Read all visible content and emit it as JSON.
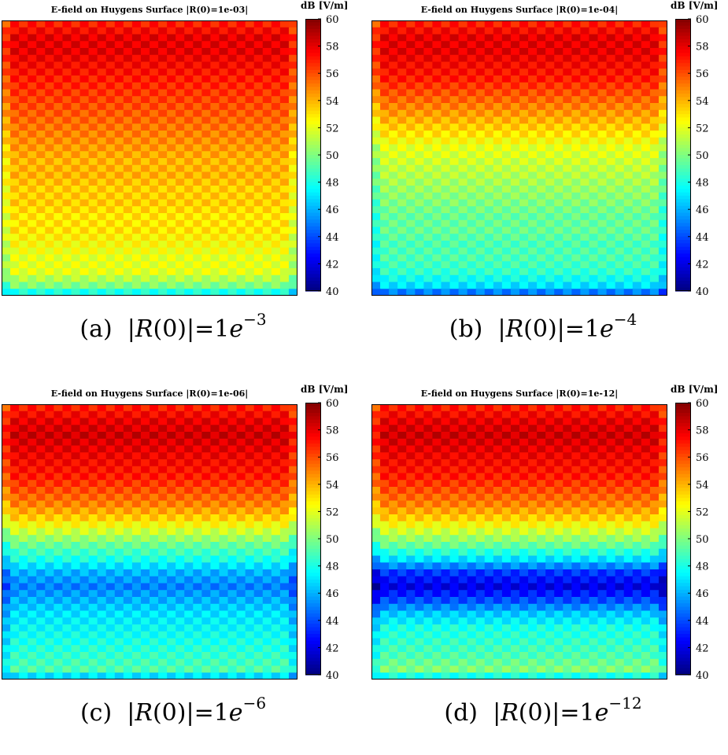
{
  "colorbar": {
    "unit": "dB [V/m]",
    "min": 40,
    "max": 60,
    "ticks": [
      "60",
      "58",
      "56",
      "54",
      "52",
      "50",
      "48",
      "46",
      "44",
      "42",
      "40"
    ]
  },
  "panels": [
    {
      "title": "E-field on Huygens Surface |R(0)=1e-03|",
      "caption_label": "(a)",
      "caption_exp": "−3"
    },
    {
      "title": "E-field on Huygens Surface |R(0)=1e-04|",
      "caption_label": "(b)",
      "caption_exp": "−4"
    },
    {
      "title": "E-field on Huygens Surface |R(0)=1e-06|",
      "caption_label": "(c)",
      "caption_exp": "−6"
    },
    {
      "title": "E-field on Huygens Surface |R(0)=1e-12|",
      "caption_label": "(d)",
      "caption_exp": "−12"
    }
  ],
  "caption_math": {
    "lhs_open": "|",
    "R": "R",
    "arg": "(0)",
    "lhs_close": "|",
    "eq": "=",
    "base": "1",
    "e": "e"
  },
  "chart_data": [
    {
      "type": "heatmap",
      "title": "E-field on Huygens Surface |R(0)=1e-03|",
      "colorbar_label": "dB [V/m]",
      "zlim": [
        40,
        60
      ],
      "row_profile_top_to_bottom": [
        57,
        58,
        58,
        57.5,
        57,
        56.5,
        56,
        55.5,
        55,
        54.5,
        54,
        54,
        53.5,
        53.5,
        53,
        53,
        52.5,
        52,
        52,
        50
      ]
    },
    {
      "type": "heatmap",
      "title": "E-field on Huygens Surface |R(0)=1e-04|",
      "colorbar_label": "dB [V/m]",
      "zlim": [
        40,
        60
      ],
      "row_profile_top_to_bottom": [
        57,
        58,
        58,
        57.5,
        57,
        56,
        55,
        54,
        53,
        52,
        51.5,
        51,
        50.5,
        50,
        49.5,
        49.5,
        49,
        49,
        48.5,
        47
      ]
    },
    {
      "type": "heatmap",
      "title": "E-field on Huygens Surface |R(0)=1e-06|",
      "colorbar_label": "dB [V/m]",
      "zlim": [
        40,
        60
      ],
      "row_profile_top_to_bottom": [
        57,
        58,
        58.5,
        58,
        57.5,
        57,
        56,
        55,
        53.5,
        51.5,
        49.5,
        48,
        46,
        45,
        46,
        47,
        47.5,
        48,
        48.5,
        49
      ]
    },
    {
      "type": "heatmap",
      "title": "E-field on Huygens Surface |R(0)=1e-12|",
      "colorbar_label": "dB [V/m]",
      "zlim": [
        40,
        60
      ],
      "row_profile_top_to_bottom": [
        57,
        58,
        58.5,
        58,
        57.5,
        57,
        56,
        55,
        53.5,
        51.5,
        49.5,
        47,
        43.5,
        42,
        44,
        46.5,
        48,
        48.5,
        49,
        50
      ]
    }
  ]
}
